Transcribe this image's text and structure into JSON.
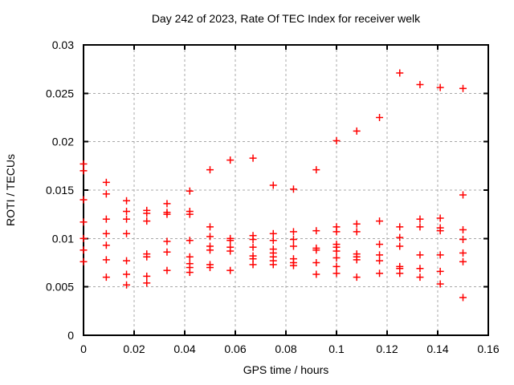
{
  "chart": {
    "title": "Day 242 of 2023, Rate Of TEC Index for receiver welk",
    "xlabel": "GPS time / hours",
    "ylabel": "ROTI / TECUs"
  },
  "colors": {
    "background": "#ffffff",
    "axis": "#000000",
    "grid": "#a8a8a8",
    "marker": "#ff0000",
    "text": "#000000"
  },
  "chart_data": {
    "type": "scatter",
    "title": "Day 242 of 2023, Rate Of TEC Index for receiver welk",
    "xlabel": "GPS time / hours",
    "ylabel": "ROTI / TECUs",
    "xlim": [
      0,
      0.16
    ],
    "ylim": [
      0,
      0.03
    ],
    "grid": true,
    "legend": false,
    "marker": {
      "shape": "plus",
      "color": "#ff0000",
      "size": 9
    },
    "xticks": [
      {
        "v": 0,
        "label": "0"
      },
      {
        "v": 0.02,
        "label": "0.02"
      },
      {
        "v": 0.04,
        "label": "0.04"
      },
      {
        "v": 0.06,
        "label": "0.06"
      },
      {
        "v": 0.08,
        "label": "0.08"
      },
      {
        "v": 0.1,
        "label": "0.1"
      },
      {
        "v": 0.12,
        "label": "0.12"
      },
      {
        "v": 0.14,
        "label": "0.14"
      },
      {
        "v": 0.16,
        "label": "0.16"
      }
    ],
    "yticks": [
      {
        "v": 0,
        "label": "0"
      },
      {
        "v": 0.005,
        "label": "0.005"
      },
      {
        "v": 0.01,
        "label": "0.01"
      },
      {
        "v": 0.015,
        "label": "0.015"
      },
      {
        "v": 0.02,
        "label": "0.02"
      },
      {
        "v": 0.025,
        "label": "0.025"
      },
      {
        "v": 0.03,
        "label": "0.03"
      }
    ],
    "series": [
      {
        "name": "ROTI",
        "color": "#ff0000",
        "points": [
          [
            0,
            0.0177
          ],
          [
            0,
            0.017
          ],
          [
            0,
            0.014
          ],
          [
            0,
            0.0117
          ],
          [
            0,
            0.01
          ],
          [
            0,
            0.0088
          ],
          [
            0,
            0.0076
          ],
          [
            0.009,
            0.0158
          ],
          [
            0.009,
            0.0146
          ],
          [
            0.009,
            0.012
          ],
          [
            0.009,
            0.0105
          ],
          [
            0.009,
            0.0093
          ],
          [
            0.009,
            0.0078
          ],
          [
            0.009,
            0.006
          ],
          [
            0.017,
            0.0139
          ],
          [
            0.017,
            0.0128
          ],
          [
            0.017,
            0.012
          ],
          [
            0.017,
            0.0105
          ],
          [
            0.017,
            0.0077
          ],
          [
            0.017,
            0.0063
          ],
          [
            0.017,
            0.0052
          ],
          [
            0.025,
            0.0129
          ],
          [
            0.025,
            0.0126
          ],
          [
            0.025,
            0.0118
          ],
          [
            0.025,
            0.0084
          ],
          [
            0.025,
            0.0081
          ],
          [
            0.025,
            0.0061
          ],
          [
            0.025,
            0.0054
          ],
          [
            0.033,
            0.0136
          ],
          [
            0.033,
            0.0127
          ],
          [
            0.033,
            0.0125
          ],
          [
            0.033,
            0.0097
          ],
          [
            0.033,
            0.0086
          ],
          [
            0.033,
            0.0067
          ],
          [
            0.042,
            0.0149
          ],
          [
            0.042,
            0.0128
          ],
          [
            0.042,
            0.0125
          ],
          [
            0.042,
            0.0098
          ],
          [
            0.042,
            0.0081
          ],
          [
            0.042,
            0.0074
          ],
          [
            0.042,
            0.007
          ],
          [
            0.042,
            0.0065
          ],
          [
            0.05,
            0.0171
          ],
          [
            0.05,
            0.0112
          ],
          [
            0.05,
            0.0102
          ],
          [
            0.05,
            0.0092
          ],
          [
            0.05,
            0.0088
          ],
          [
            0.05,
            0.0073
          ],
          [
            0.05,
            0.007
          ],
          [
            0.058,
            0.0181
          ],
          [
            0.058,
            0.01
          ],
          [
            0.058,
            0.0098
          ],
          [
            0.058,
            0.0091
          ],
          [
            0.058,
            0.0087
          ],
          [
            0.058,
            0.0067
          ],
          [
            0.067,
            0.0183
          ],
          [
            0.067,
            0.0103
          ],
          [
            0.067,
            0.0099
          ],
          [
            0.067,
            0.0091
          ],
          [
            0.067,
            0.0082
          ],
          [
            0.067,
            0.0079
          ],
          [
            0.067,
            0.0073
          ],
          [
            0.075,
            0.0155
          ],
          [
            0.075,
            0.0105
          ],
          [
            0.075,
            0.0098
          ],
          [
            0.075,
            0.0089
          ],
          [
            0.075,
            0.0085
          ],
          [
            0.075,
            0.0081
          ],
          [
            0.075,
            0.0077
          ],
          [
            0.075,
            0.0073
          ],
          [
            0.083,
            0.0151
          ],
          [
            0.083,
            0.0107
          ],
          [
            0.083,
            0.0099
          ],
          [
            0.083,
            0.0092
          ],
          [
            0.083,
            0.0079
          ],
          [
            0.083,
            0.0075
          ],
          [
            0.083,
            0.0072
          ],
          [
            0.092,
            0.0171
          ],
          [
            0.092,
            0.0108
          ],
          [
            0.092,
            0.009
          ],
          [
            0.092,
            0.0088
          ],
          [
            0.092,
            0.0075
          ],
          [
            0.092,
            0.0063
          ],
          [
            0.1,
            0.0201
          ],
          [
            0.1,
            0.0112
          ],
          [
            0.1,
            0.0107
          ],
          [
            0.1,
            0.0094
          ],
          [
            0.1,
            0.0091
          ],
          [
            0.1,
            0.0087
          ],
          [
            0.1,
            0.008
          ],
          [
            0.1,
            0.0071
          ],
          [
            0.1,
            0.0064
          ],
          [
            0.108,
            0.0211
          ],
          [
            0.108,
            0.0115
          ],
          [
            0.108,
            0.0107
          ],
          [
            0.108,
            0.0084
          ],
          [
            0.108,
            0.0081
          ],
          [
            0.108,
            0.0078
          ],
          [
            0.108,
            0.006
          ],
          [
            0.117,
            0.0225
          ],
          [
            0.117,
            0.0118
          ],
          [
            0.117,
            0.0094
          ],
          [
            0.117,
            0.0083
          ],
          [
            0.117,
            0.0077
          ],
          [
            0.117,
            0.0064
          ],
          [
            0.125,
            0.0271
          ],
          [
            0.125,
            0.0112
          ],
          [
            0.125,
            0.0101
          ],
          [
            0.125,
            0.0092
          ],
          [
            0.125,
            0.0071
          ],
          [
            0.125,
            0.0069
          ],
          [
            0.125,
            0.0064
          ],
          [
            0.133,
            0.0259
          ],
          [
            0.133,
            0.012
          ],
          [
            0.133,
            0.0112
          ],
          [
            0.133,
            0.0083
          ],
          [
            0.133,
            0.0069
          ],
          [
            0.133,
            0.006
          ],
          [
            0.141,
            0.0256
          ],
          [
            0.141,
            0.0121
          ],
          [
            0.141,
            0.0111
          ],
          [
            0.141,
            0.0108
          ],
          [
            0.141,
            0.0083
          ],
          [
            0.141,
            0.0066
          ],
          [
            0.141,
            0.0053
          ],
          [
            0.15,
            0.0255
          ],
          [
            0.15,
            0.0145
          ],
          [
            0.15,
            0.0109
          ],
          [
            0.15,
            0.0099
          ],
          [
            0.15,
            0.0085
          ],
          [
            0.15,
            0.0076
          ],
          [
            0.15,
            0.0039
          ]
        ]
      }
    ]
  }
}
